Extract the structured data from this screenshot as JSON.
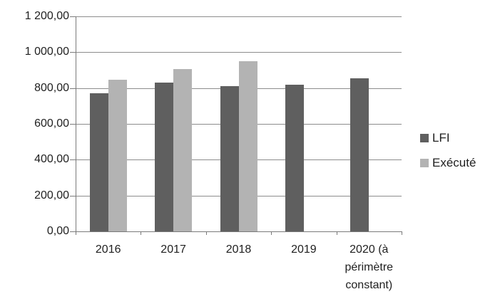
{
  "chart_data": {
    "type": "bar",
    "title": "",
    "categories": [
      "2016",
      "2017",
      "2018",
      "2019",
      "2020 (à périmètre constant)"
    ],
    "series": [
      {
        "name": "LFI",
        "color": "#5f5f5f",
        "values": [
          770,
          830,
          810,
          820,
          855
        ]
      },
      {
        "name": "Exécuté",
        "color": "#b3b3b3",
        "values": [
          845,
          905,
          950,
          null,
          null
        ]
      }
    ],
    "ylabel": "",
    "xlabel": "",
    "ylim": [
      0,
      1200
    ],
    "ytick_step": 200,
    "ytick_labels": [
      "0,00",
      "200,00",
      "400,00",
      "600,00",
      "800,00",
      "1 000,00",
      "1 200,00"
    ],
    "grid": true,
    "legend_position": "right",
    "colors": {
      "gridline": "#8c8c8c",
      "axis": "#7a7a7a",
      "text": "#1f1f1f",
      "background": "#ffffff"
    }
  }
}
